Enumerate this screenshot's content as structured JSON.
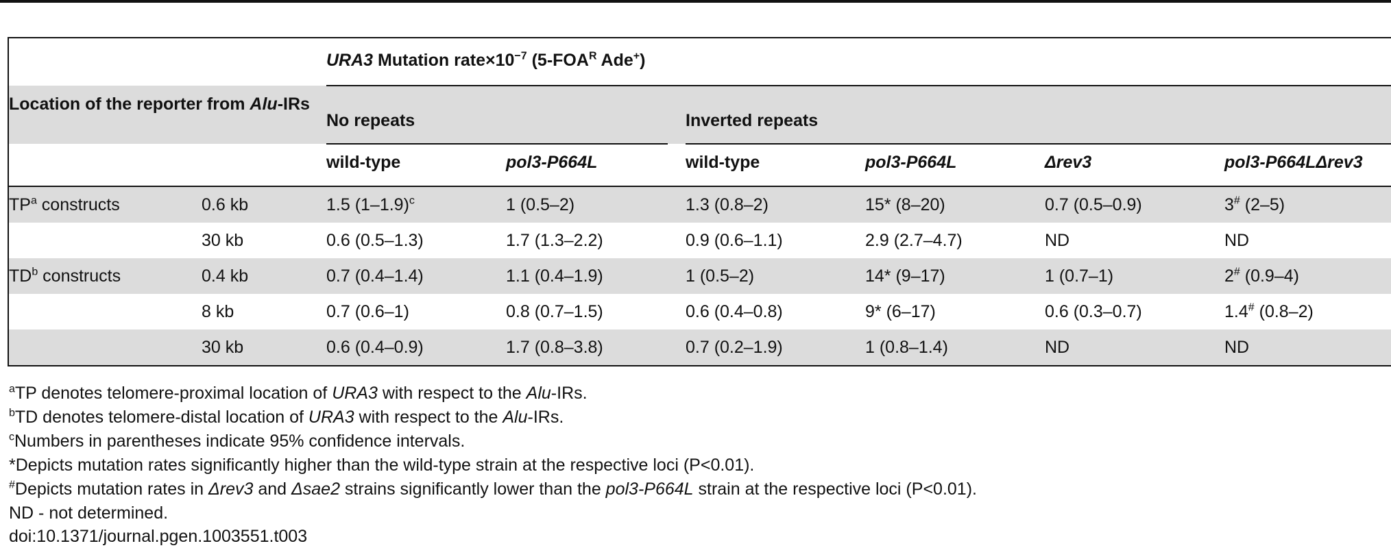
{
  "header": {
    "group": [
      "URA3",
      " Mutation rate",
      "×10",
      "−7",
      " (5-FOA",
      "R",
      " Ade",
      "+",
      ")"
    ],
    "location": [
      "Location of the reporter from ",
      "Alu",
      "-IRs"
    ],
    "no_repeats": "No repeats",
    "inverted_repeats": "Inverted repeats",
    "columns": [
      "wild-type",
      "pol3-P664L",
      "wild-type",
      "pol3-P664L",
      "Δrev3",
      "pol3-P664LΔrev3"
    ]
  },
  "table": {
    "rows": [
      {
        "label": [
          "TP",
          "a",
          " constructs"
        ],
        "distance": "0.6 kb",
        "cells": [
          [
            "1.5 (1–1.9)",
            "c"
          ],
          [
            "1 (0.5–2)"
          ],
          [
            "1.3 (0.8–2)"
          ],
          [
            "15* (8–20)"
          ],
          [
            "0.7 (0.5–0.9)"
          ],
          [
            "3",
            "#",
            " (2–5)"
          ]
        ]
      },
      {
        "label": null,
        "distance": "30 kb",
        "cells": [
          [
            "0.6 (0.5–1.3)"
          ],
          [
            "1.7 (1.3–2.2)"
          ],
          [
            "0.9 (0.6–1.1)"
          ],
          [
            "2.9 (2.7–4.7)"
          ],
          [
            "ND"
          ],
          [
            "ND"
          ]
        ]
      },
      {
        "label": [
          "TD",
          "b",
          " constructs"
        ],
        "distance": "0.4 kb",
        "cells": [
          [
            "0.7 (0.4–1.4)"
          ],
          [
            "1.1 (0.4–1.9)"
          ],
          [
            "1 (0.5–2)"
          ],
          [
            "14* (9–17)"
          ],
          [
            "1 (0.7–1)"
          ],
          [
            "2",
            "#",
            " (0.9–4)"
          ]
        ]
      },
      {
        "label": null,
        "distance": "8 kb",
        "cells": [
          [
            "0.7 (0.6–1)"
          ],
          [
            "0.8 (0.7–1.5)"
          ],
          [
            "0.6 (0.4–0.8)"
          ],
          [
            "9* (6–17)"
          ],
          [
            "0.6 (0.3–0.7)"
          ],
          [
            "1.4",
            "#",
            " (0.8–2)"
          ]
        ]
      },
      {
        "label": null,
        "distance": "30 kb",
        "cells": [
          [
            "0.6 (0.4–0.9)"
          ],
          [
            "1.7 (0.8–3.8)"
          ],
          [
            "0.7 (0.2–1.9)"
          ],
          [
            "1 (0.8–1.4)"
          ],
          [
            "ND"
          ],
          [
            "ND"
          ]
        ]
      }
    ]
  },
  "footnotes": [
    [
      "a",
      "TP denotes telomere-proximal location of ",
      "URA3",
      " with respect to the ",
      "Alu",
      "-IRs."
    ],
    [
      "b",
      "TD denotes telomere-distal location of ",
      "URA3",
      " with respect to the ",
      "Alu",
      "-IRs."
    ],
    [
      "c",
      "Numbers in parentheses indicate 95% confidence intervals."
    ],
    [
      "*Depicts mutation rates significantly higher than the wild-type strain at the respective loci (P",
      "<",
      "0.01)."
    ],
    [
      "#",
      "Depicts mutation rates in ",
      "Δrev3",
      " and ",
      "Δsae2",
      " strains significantly lower than the ",
      "pol3-P664L",
      " strain at the respective loci (P",
      "<",
      "0.01)."
    ],
    [
      "ND - not determined."
    ],
    [
      "doi:10.1371/journal.pgen.1003551.t003"
    ]
  ]
}
